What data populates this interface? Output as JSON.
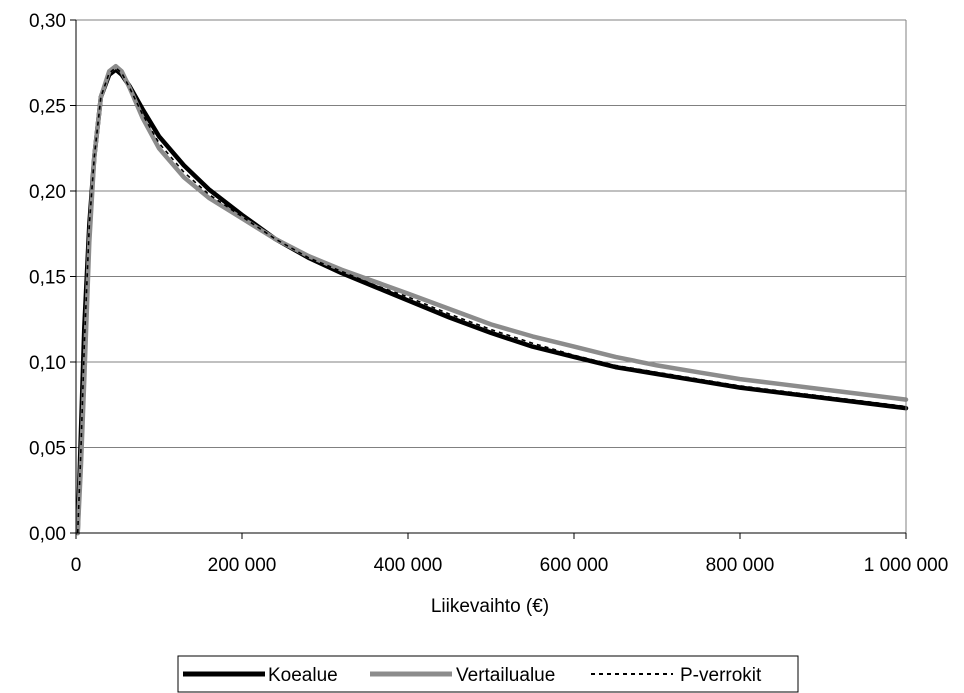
{
  "chart_data": {
    "type": "line",
    "title": "",
    "xlabel": "Liikevaihto (€)",
    "ylabel": "",
    "xlim": [
      0,
      1000000
    ],
    "ylim": [
      0,
      0.3
    ],
    "grid": "horizontal",
    "legend_position": "bottom",
    "x_ticks": [
      {
        "value": 0,
        "label": "0"
      },
      {
        "value": 200000,
        "label": "200 000"
      },
      {
        "value": 400000,
        "label": "400 000"
      },
      {
        "value": 600000,
        "label": "600 000"
      },
      {
        "value": 800000,
        "label": "800 000"
      },
      {
        "value": 1000000,
        "label": "1 000 000"
      }
    ],
    "y_ticks": [
      {
        "value": 0,
        "label": "0,00"
      },
      {
        "value": 0.05,
        "label": "0,05"
      },
      {
        "value": 0.1,
        "label": "0,10"
      },
      {
        "value": 0.15,
        "label": "0,15"
      },
      {
        "value": 0.2,
        "label": "0,20"
      },
      {
        "value": 0.25,
        "label": "0,25"
      },
      {
        "value": 0.3,
        "label": "0,30"
      }
    ],
    "series": [
      {
        "name": "Koealue",
        "color": "#000000",
        "style": "solid",
        "x": [
          2000,
          6000,
          10000,
          16000,
          22000,
          30000,
          40000,
          48000,
          55000,
          65000,
          80000,
          100000,
          130000,
          160000,
          200000,
          240000,
          280000,
          320000,
          360000,
          400000,
          450000,
          500000,
          550000,
          600000,
          650000,
          700000,
          750000,
          800000,
          850000,
          900000,
          950000,
          1000000
        ],
        "y": [
          0.0,
          0.06,
          0.12,
          0.18,
          0.22,
          0.255,
          0.268,
          0.271,
          0.268,
          0.261,
          0.248,
          0.232,
          0.215,
          0.201,
          0.186,
          0.172,
          0.161,
          0.152,
          0.144,
          0.136,
          0.126,
          0.117,
          0.109,
          0.103,
          0.097,
          0.093,
          0.089,
          0.085,
          0.082,
          0.079,
          0.076,
          0.073
        ]
      },
      {
        "name": "Vertailualue",
        "color": "#8c8c8c",
        "style": "solid",
        "x": [
          2000,
          6000,
          10000,
          16000,
          22000,
          30000,
          40000,
          48000,
          55000,
          65000,
          80000,
          100000,
          130000,
          160000,
          200000,
          240000,
          280000,
          320000,
          360000,
          400000,
          450000,
          500000,
          550000,
          600000,
          650000,
          700000,
          750000,
          800000,
          850000,
          900000,
          950000,
          1000000
        ],
        "y": [
          0.0,
          0.04,
          0.09,
          0.17,
          0.22,
          0.255,
          0.27,
          0.273,
          0.27,
          0.26,
          0.243,
          0.225,
          0.208,
          0.196,
          0.184,
          0.172,
          0.162,
          0.154,
          0.147,
          0.14,
          0.131,
          0.122,
          0.115,
          0.109,
          0.103,
          0.098,
          0.094,
          0.09,
          0.087,
          0.084,
          0.081,
          0.078
        ]
      },
      {
        "name": "P-verrokit",
        "color": "#000000",
        "style": "dashed",
        "x": [
          2000,
          6000,
          10000,
          16000,
          22000,
          30000,
          40000,
          48000,
          55000,
          65000,
          80000,
          100000,
          130000,
          160000,
          200000,
          240000,
          280000,
          320000,
          360000,
          400000,
          450000,
          500000,
          550000,
          600000,
          650000,
          700000,
          750000,
          800000,
          850000,
          900000,
          950000,
          1000000
        ],
        "y": [
          0.0,
          0.05,
          0.11,
          0.18,
          0.22,
          0.255,
          0.269,
          0.272,
          0.269,
          0.26,
          0.245,
          0.228,
          0.211,
          0.198,
          0.185,
          0.172,
          0.161,
          0.153,
          0.145,
          0.138,
          0.128,
          0.119,
          0.111,
          0.104,
          0.098,
          0.094,
          0.09,
          0.086,
          0.083,
          0.08,
          0.077,
          0.074
        ]
      }
    ]
  }
}
